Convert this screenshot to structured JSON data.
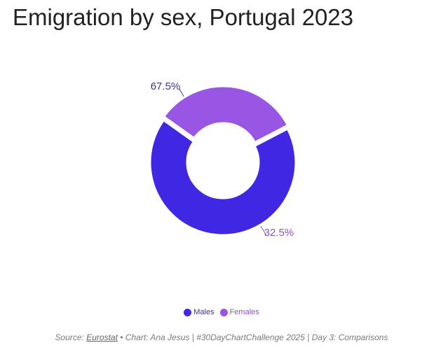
{
  "chart_data": {
    "type": "pie",
    "title": "Emigration by sex, Portugal 2023",
    "categories": [
      "Males",
      "Females"
    ],
    "values": [
      67.5,
      32.5
    ],
    "value_labels": [
      "67.5%",
      "32.5%"
    ],
    "colors": [
      "#3f27e4",
      "#9955e3"
    ],
    "label_colors": [
      "#3a3395",
      "#8c4fc7"
    ],
    "donut": true,
    "legend": "bottom-center"
  },
  "caption": {
    "source_prefix": "Source: ",
    "source_name": "Eurostat",
    "rest": " • Chart: Ana Jesus | #30DayChartChallenge 2025 | Day 3: Comparisons"
  }
}
